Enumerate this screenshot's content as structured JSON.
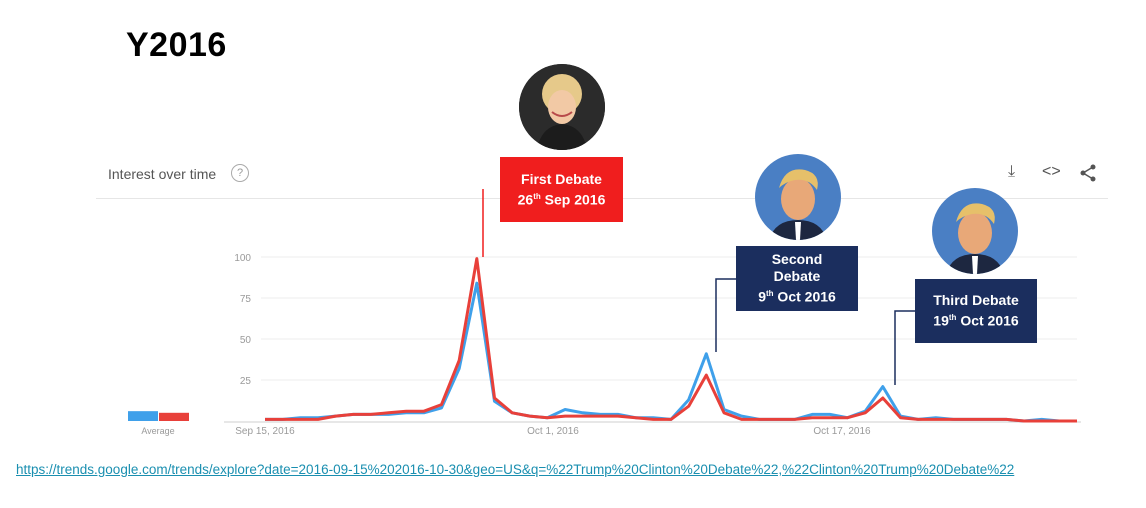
{
  "title": "Y2016",
  "panel": {
    "title": "Interest over time",
    "help_icon": "?",
    "download_icon": "⤓",
    "embed_icon": "<>",
    "share_icon": "share"
  },
  "chart_data": {
    "type": "line",
    "title": "Interest over time",
    "xlabel": "",
    "ylabel": "",
    "ylim": [
      0,
      100
    ],
    "yticks": [
      "100",
      "75",
      "50",
      "25"
    ],
    "x_tick_labels": [
      "Sep 15, 2016",
      "Oct 1, 2016",
      "Oct 17, 2016"
    ],
    "average_label": "Average",
    "averages": [
      6,
      5
    ],
    "series": [
      {
        "name": "Trump Clinton Debate",
        "color": "#3fa0ea",
        "values": [
          1,
          1,
          2,
          2,
          3,
          4,
          4,
          4,
          5,
          5,
          8,
          32,
          84,
          12,
          5,
          3,
          2,
          7,
          5,
          4,
          4,
          2,
          2,
          1,
          13,
          41,
          7,
          3,
          1,
          1,
          1,
          4,
          4,
          2,
          6,
          21,
          3,
          1,
          2,
          1,
          1,
          1,
          1,
          0,
          1,
          0,
          0
        ]
      },
      {
        "name": "Clinton Trump Debate",
        "color": "#e8403a",
        "values": [
          1,
          1,
          1,
          1,
          3,
          4,
          4,
          5,
          6,
          6,
          10,
          37,
          99,
          14,
          5,
          3,
          2,
          3,
          3,
          3,
          3,
          2,
          1,
          1,
          9,
          28,
          5,
          1,
          1,
          1,
          1,
          2,
          2,
          2,
          5,
          14,
          2,
          1,
          1,
          1,
          1,
          1,
          1,
          0,
          0,
          0,
          0
        ]
      }
    ],
    "annotations": [
      {
        "lines": [
          "First Debate",
          "26",
          "th",
          " Sep 2016"
        ],
        "color": "#f01e1e"
      },
      {
        "lines": [
          "Second",
          "Debate",
          "9",
          "th",
          " Oct 2016"
        ],
        "color": "#1b2e5e"
      },
      {
        "lines": [
          "Third Debate",
          "19",
          "th",
          " Oct 2016"
        ],
        "color": "#1b2e5e"
      }
    ]
  },
  "source_link": "https://trends.google.com/trends/explore?date=2016-09-15%202016-10-30&geo=US&q=%22Trump%20Clinton%20Debate%22,%22Clinton%20Trump%20Debate%22"
}
